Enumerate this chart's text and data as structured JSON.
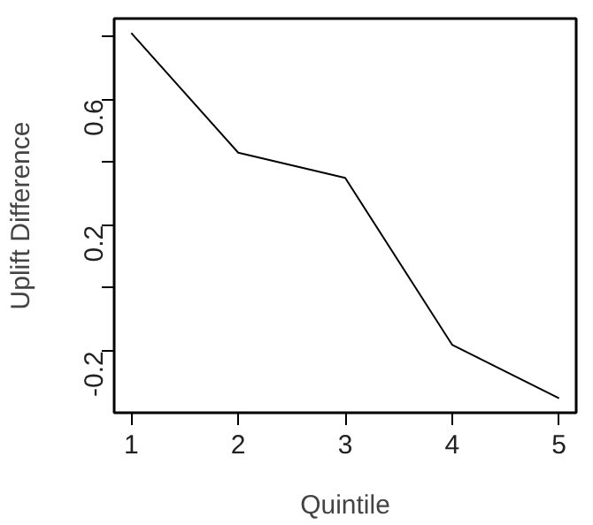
{
  "chart_data": {
    "type": "line",
    "xlabel": "Quintile",
    "ylabel": "Uplift Difference",
    "x": [
      1,
      2,
      3,
      4,
      5
    ],
    "values": [
      0.81,
      0.43,
      0.35,
      -0.18,
      -0.35
    ],
    "color": "#000000",
    "marker": "none",
    "line_style": "solid",
    "grid": false,
    "xlim": [
      0.84,
      5.16
    ],
    "xticks": [
      1,
      2,
      3,
      4,
      5
    ],
    "ylim": [
      -0.396,
      0.856
    ],
    "yticks": [
      {
        "value": -0.2,
        "label": "-0.2"
      },
      {
        "value": 0.0,
        "label": null
      },
      {
        "value": 0.2,
        "label": "0.2"
      },
      {
        "value": 0.4,
        "label": null
      },
      {
        "value": 0.6,
        "label": "0.6"
      },
      {
        "value": 0.8,
        "label": null
      }
    ]
  }
}
